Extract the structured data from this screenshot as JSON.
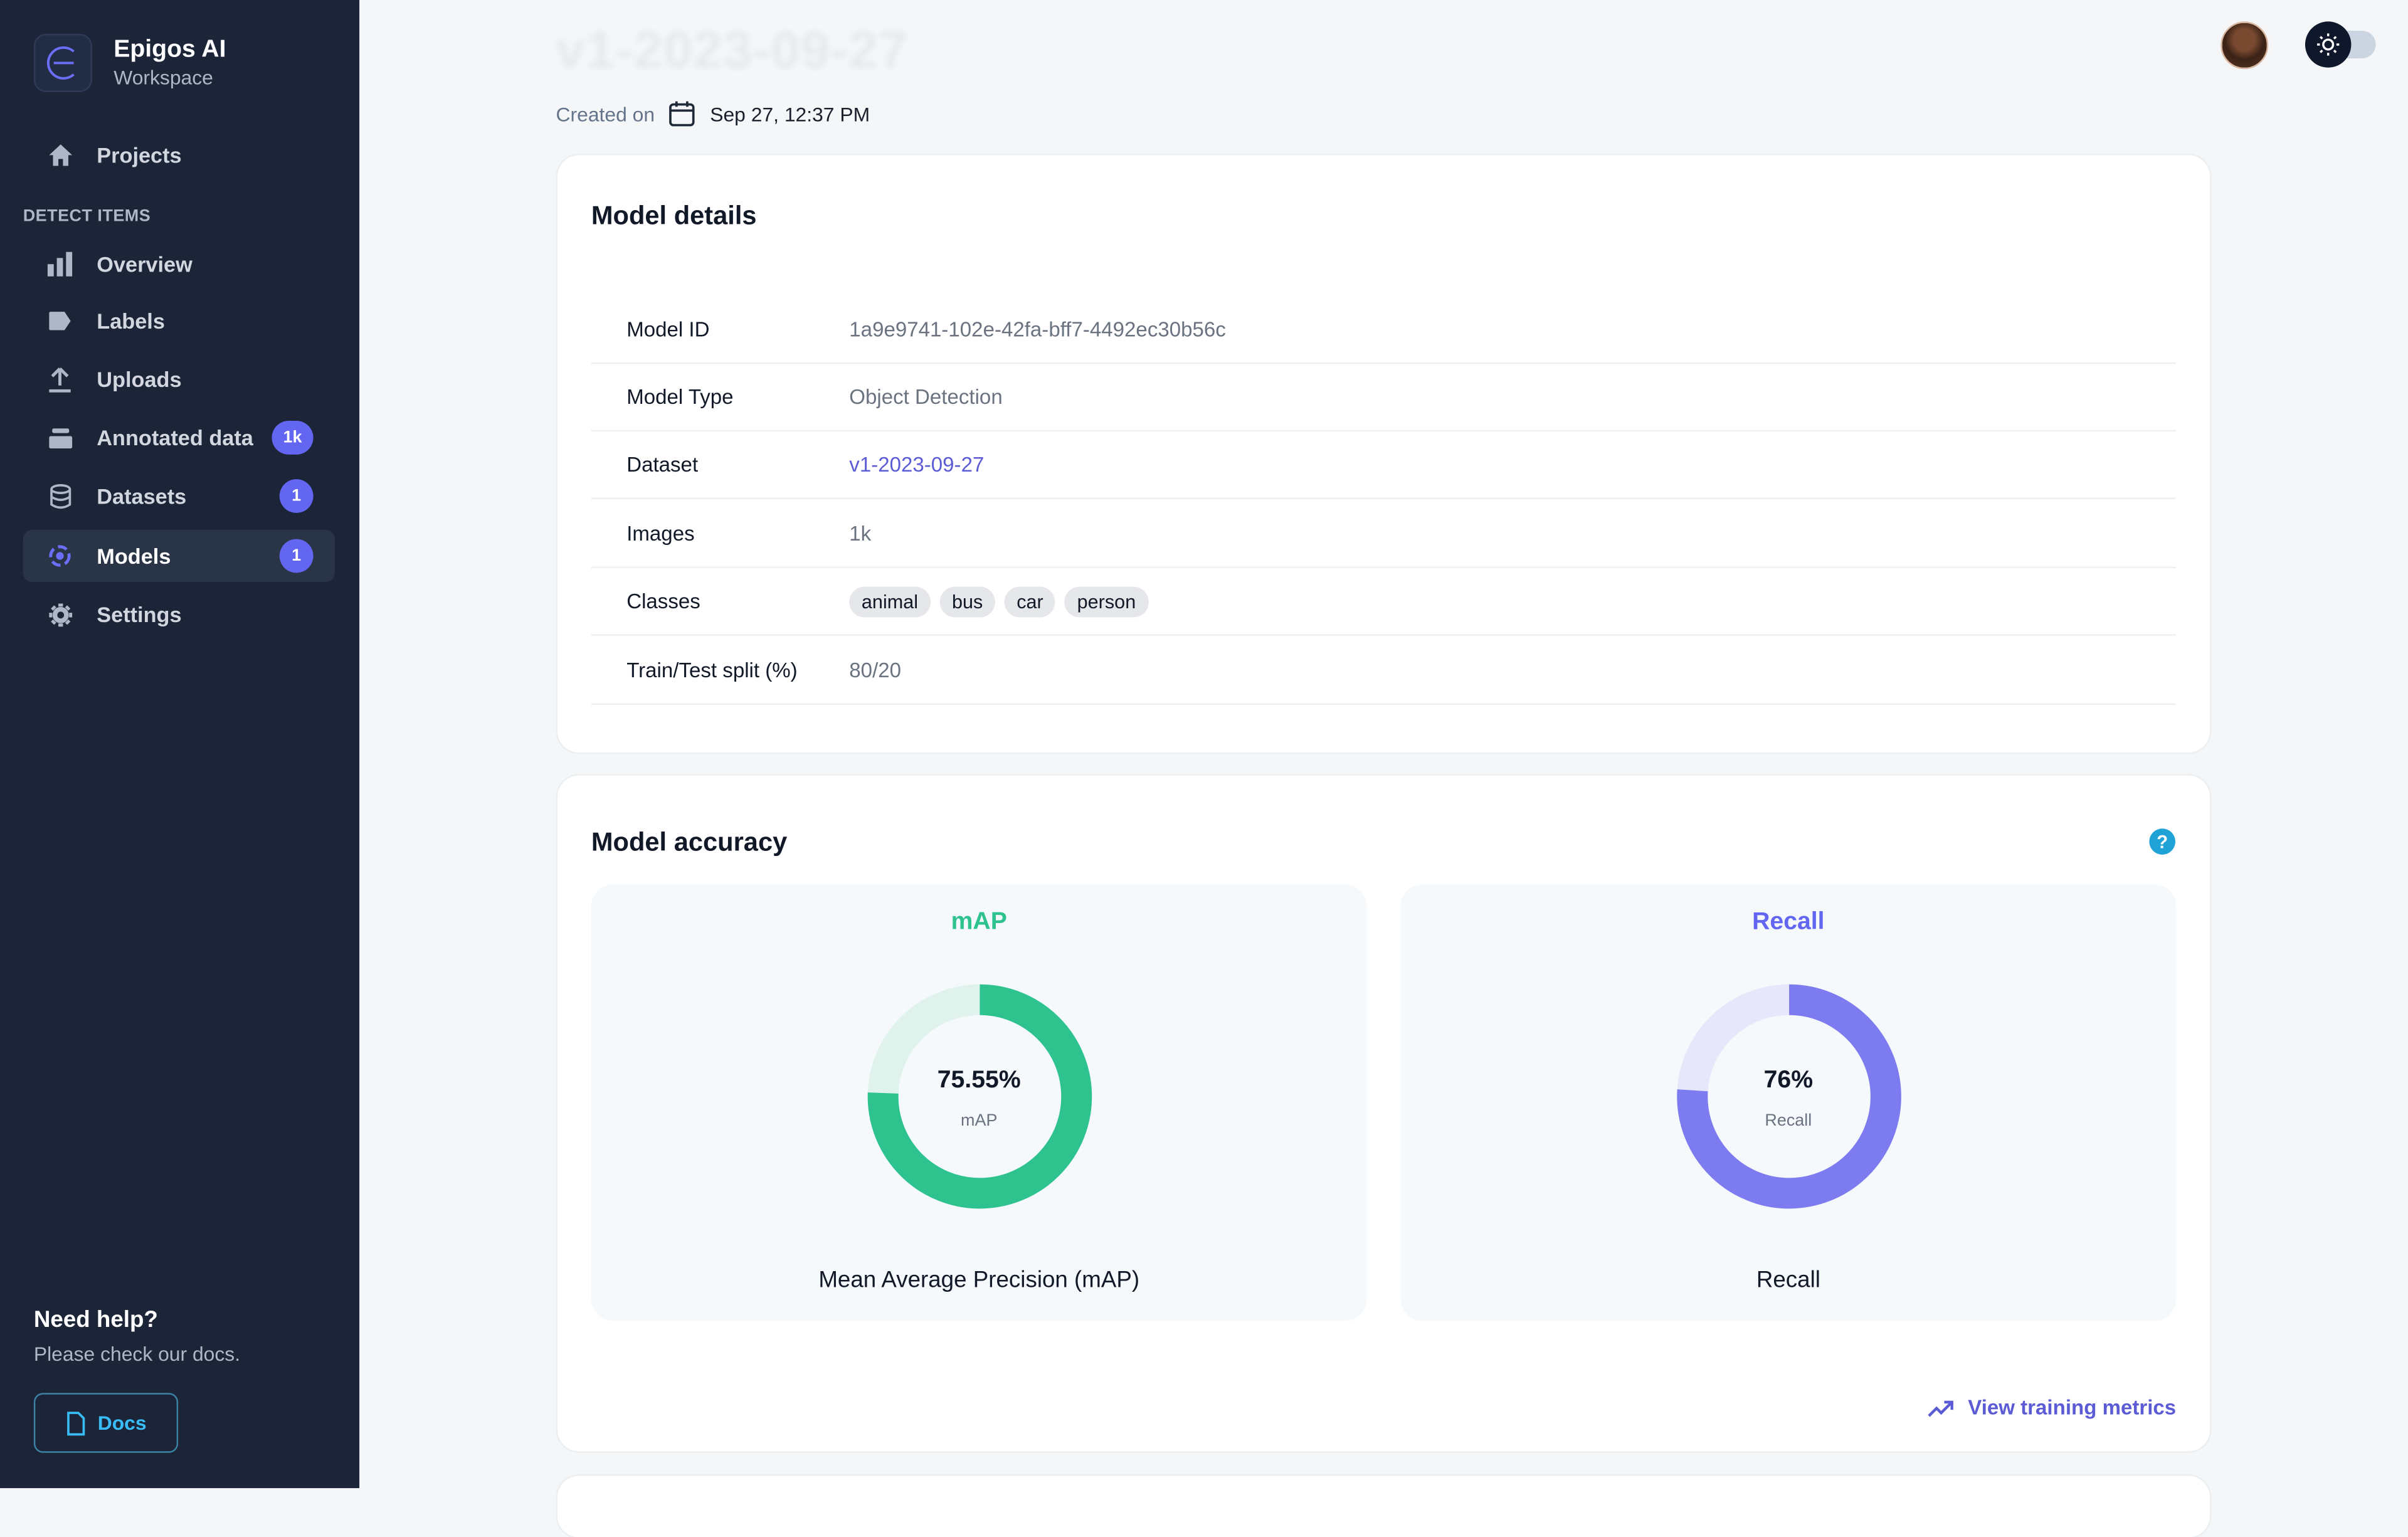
{
  "brand": {
    "name": "Epigos AI",
    "sub": "Workspace"
  },
  "nav": {
    "projects": "Projects",
    "section": "DETECT ITEMS",
    "overview": "Overview",
    "labels": "Labels",
    "uploads": "Uploads",
    "annotated": "Annotated data",
    "annotated_badge": "1k",
    "datasets": "Datasets",
    "datasets_badge": "1",
    "models": "Models",
    "models_badge": "1",
    "settings": "Settings"
  },
  "help": {
    "title": "Need help?",
    "sub": "Please check our docs.",
    "docs_label": "Docs"
  },
  "header": {
    "title": "v1-2023-09-27",
    "created_prefix": "Created on",
    "created_date": "Sep 27, 12:37 PM"
  },
  "details": {
    "title": "Model details",
    "rows": [
      {
        "key": "Model ID",
        "value": "1a9e9741-102e-42fa-bff7-4492ec30b56c"
      },
      {
        "key": "Model Type",
        "value": "Object Detection"
      },
      {
        "key": "Dataset",
        "value": "v1-2023-09-27"
      },
      {
        "key": "Images",
        "value": "1k"
      },
      {
        "key": "Classes",
        "value": ""
      },
      {
        "key": "Train/Test split (%)",
        "value": "80/20"
      }
    ],
    "classes": [
      "animal",
      "bus",
      "car",
      "person"
    ]
  },
  "accuracy": {
    "title": "Model accuracy",
    "map": {
      "head": "mAP",
      "value": "75.55%",
      "label": "mAP",
      "foot": "Mean Average Precision (mAP)",
      "fraction": 0.7555,
      "color": "#2ec28f",
      "track": "#dff3ec"
    },
    "recall": {
      "head": "Recall",
      "value": "76%",
      "label": "Recall",
      "foot": "Recall",
      "fraction": 0.76,
      "color": "#7c7cf0",
      "track": "#e6e7fb"
    },
    "view_link": "View training metrics"
  }
}
